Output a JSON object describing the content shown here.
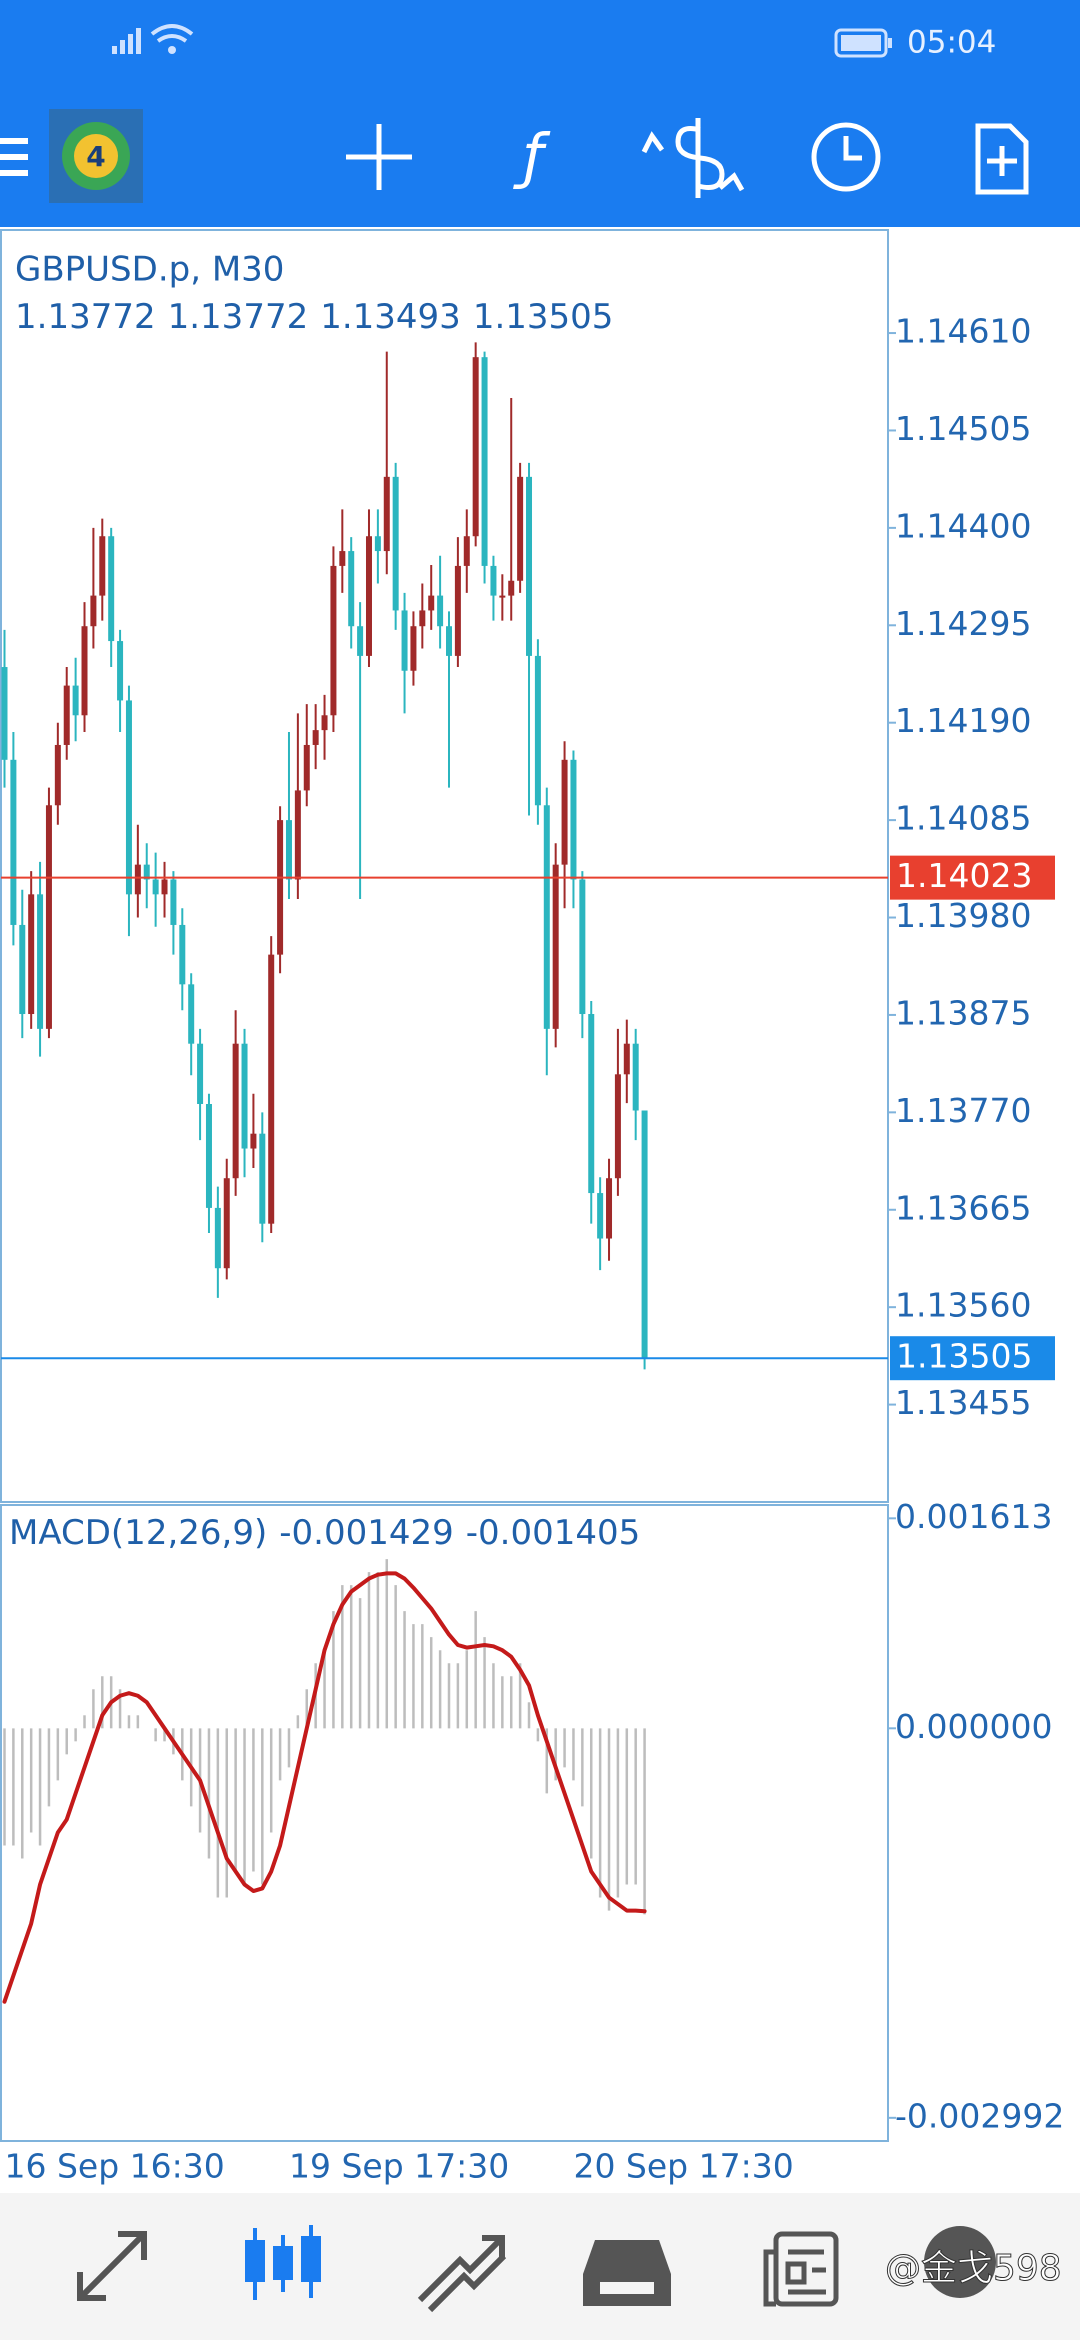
{
  "status_bar": {
    "time": "05:04"
  },
  "watermark": "@金戈598",
  "chart_data": [
    {
      "type": "candlestick",
      "title": "GBPUSD.p, M30",
      "categories": [
        "16 Sep 16:30",
        null,
        null,
        null,
        null,
        null,
        null,
        null,
        null,
        null,
        null,
        null,
        null,
        null,
        null,
        null,
        null,
        null,
        null,
        null,
        null,
        null,
        null,
        null,
        null,
        null,
        null,
        null,
        null,
        null,
        null,
        null,
        "19 Sep 17:30",
        null,
        null,
        null,
        null,
        null,
        null,
        null,
        null,
        null,
        null,
        null,
        null,
        null,
        null,
        null,
        null,
        null,
        null,
        null,
        null,
        null,
        null,
        null,
        null,
        null,
        null,
        null,
        null,
        null,
        null,
        null,
        "20 Sep 17:30",
        null,
        null,
        null,
        null,
        null,
        null,
        null,
        null
      ],
      "open": [
        1.1425,
        1.1415,
        1.13972,
        1.13876,
        1.14005,
        1.1386,
        1.14101,
        1.14166,
        1.1423,
        1.14198,
        1.14294,
        1.14327,
        1.14391,
        1.14278,
        1.14214,
        1.14005,
        1.14037,
        1.14021,
        1.14005,
        1.14021,
        1.13972,
        1.13908,
        1.13844,
        1.13779,
        1.13667,
        1.13602,
        1.13699,
        1.13844,
        1.13731,
        1.13747,
        1.1365,
        1.1394,
        1.14085,
        1.14021,
        1.14117,
        1.14166,
        1.14182,
        1.14198,
        1.14359,
        1.14375,
        1.14294,
        1.14262,
        1.14391,
        1.14375,
        1.14455,
        1.14311,
        1.14246,
        1.14294,
        1.14311,
        1.14327,
        1.14294,
        1.14262,
        1.14359,
        1.14391,
        1.14584,
        1.14359,
        1.14327,
        1.14327,
        1.14343,
        1.14455,
        1.14262,
        1.14101,
        1.1386,
        1.14037,
        1.1415,
        1.14021,
        1.13876,
        1.13683,
        1.13634,
        1.13699,
        1.13811,
        1.13844,
        1.13772
      ],
      "high": [
        1.1429,
        1.1418,
        1.1401,
        1.1403,
        1.1404,
        1.1412,
        1.1419,
        1.1425,
        1.1426,
        1.1432,
        1.144,
        1.1441,
        1.144,
        1.1429,
        1.1423,
        1.1408,
        1.1406,
        1.1405,
        1.1404,
        1.1403,
        1.1399,
        1.1392,
        1.1386,
        1.1379,
        1.1369,
        1.1372,
        1.1388,
        1.1386,
        1.1379,
        1.1377,
        1.1396,
        1.141,
        1.1418,
        1.142,
        1.1421,
        1.1421,
        1.1422,
        1.1438,
        1.1442,
        1.1439,
        1.1432,
        1.1442,
        1.1442,
        1.1459,
        1.1447,
        1.1433,
        1.1431,
        1.1434,
        1.1436,
        1.1437,
        1.1431,
        1.1439,
        1.1442,
        1.146,
        1.1459,
        1.1437,
        1.1435,
        1.1454,
        1.1447,
        1.1447,
        1.1428,
        1.1412,
        1.1406,
        1.1417,
        1.1416,
        1.1403,
        1.1389,
        1.137,
        1.1372,
        1.1386,
        1.1387,
        1.1386,
        1.13772
      ],
      "low": [
        1.1412,
        1.1395,
        1.1385,
        1.1386,
        1.1383,
        1.1385,
        1.1408,
        1.1415,
        1.1417,
        1.1418,
        1.1427,
        1.143,
        1.1425,
        1.1418,
        1.1396,
        1.1398,
        1.1399,
        1.1397,
        1.1398,
        1.1394,
        1.1388,
        1.1381,
        1.1374,
        1.1364,
        1.1357,
        1.1359,
        1.1368,
        1.137,
        1.1371,
        1.1363,
        1.1364,
        1.1392,
        1.14,
        1.14,
        1.141,
        1.1414,
        1.1415,
        1.1418,
        1.1433,
        1.1427,
        1.14,
        1.1425,
        1.1434,
        1.1435,
        1.1429,
        1.142,
        1.1423,
        1.1427,
        1.1429,
        1.1427,
        1.1412,
        1.1425,
        1.1433,
        1.1438,
        1.1434,
        1.143,
        1.143,
        1.143,
        1.1433,
        1.1409,
        1.1408,
        1.1381,
        1.1384,
        1.1399,
        1.1399,
        1.1385,
        1.1365,
        1.136,
        1.1361,
        1.1368,
        1.1378,
        1.1374,
        1.13493
      ],
      "close": [
        1.1415,
        1.13972,
        1.13876,
        1.14005,
        1.1386,
        1.14101,
        1.14166,
        1.1423,
        1.14198,
        1.14294,
        1.14327,
        1.14391,
        1.14278,
        1.14214,
        1.14005,
        1.14037,
        1.14021,
        1.14005,
        1.14021,
        1.13972,
        1.13908,
        1.13844,
        1.13779,
        1.13667,
        1.13602,
        1.13699,
        1.13844,
        1.13731,
        1.13747,
        1.1365,
        1.1394,
        1.14085,
        1.14021,
        1.14117,
        1.14166,
        1.14182,
        1.14198,
        1.14359,
        1.14375,
        1.14294,
        1.14262,
        1.14391,
        1.14375,
        1.14455,
        1.14311,
        1.14246,
        1.14294,
        1.14311,
        1.14327,
        1.14294,
        1.14262,
        1.14359,
        1.14391,
        1.14584,
        1.14359,
        1.14327,
        1.14327,
        1.14343,
        1.14455,
        1.14262,
        1.14101,
        1.1386,
        1.14037,
        1.1415,
        1.14021,
        1.13876,
        1.13683,
        1.13634,
        1.13699,
        1.13811,
        1.13844,
        1.13772,
        1.13505
      ],
      "up_color": "#a02a2a",
      "down_color": "#2bb5bf",
      "ylim": [
        1.1335,
        1.1472
      ],
      "yticks": [
        {
          "value": 1.1461,
          "label": "1.14610"
        },
        1.14505,
        {
          "value": 1.144,
          "label": "1.14400"
        },
        1.14295,
        {
          "value": 1.1419,
          "label": "1.14190"
        },
        1.14085,
        {
          "value": 1.1398,
          "label": "1.13980"
        },
        1.13875,
        {
          "value": 1.1377,
          "label": "1.13770"
        },
        1.13665,
        {
          "value": 1.1356,
          "label": "1.13560"
        },
        1.13455
      ],
      "lines": [
        {
          "value": 1.14023,
          "color": "#e8402f"
        }
      ],
      "bid_color": "#1a8ae8"
    },
    {
      "type": "macd",
      "title": "MACD(12,26,9)",
      "series": [
        {
          "style": "histogram",
          "color": "#bdbdbd",
          "values": [
            -0.0009,
            -0.0009,
            -0.001,
            -0.0008,
            -0.0009,
            -0.0006,
            -0.0004,
            -0.0002,
            -0.0001,
            0.0001,
            0.0003,
            0.0004,
            0.0004,
            0.0003,
            0.0001,
            0.0001,
            0,
            -0.0001,
            -0.0001,
            -0.0002,
            -0.0004,
            -0.0006,
            -0.0008,
            -0.001,
            -0.0013,
            -0.0013,
            -0.0011,
            -0.0012,
            -0.0011,
            -0.0012,
            -0.0008,
            -0.0004,
            -0.0003,
            0.0001,
            0.0003,
            0.0005,
            0.0006,
            0.0009,
            0.0011,
            0.0011,
            0.001,
            0.0012,
            0.0012,
            0.0013,
            0.0011,
            0.0009,
            0.0008,
            0.0008,
            0.0007,
            0.0006,
            0.0005,
            0.0005,
            0.0006,
            0.0009,
            0.0007,
            0.0005,
            0.0004,
            0.0004,
            0.0005,
            0.0002,
            -0.0001,
            -0.0005,
            -0.0004,
            -0.0003,
            -0.0004,
            -0.0006,
            -0.001,
            -0.0013,
            -0.0014,
            -0.0013,
            -0.0012,
            -0.0012,
            -0.001429
          ]
        },
        {
          "style": "line",
          "color": "#c41a1a",
          "values": [
            -0.0021,
            -0.0019,
            -0.0017,
            -0.0015,
            -0.0012,
            -0.001,
            -0.0008,
            -0.0007,
            -0.0005,
            -0.0003,
            -0.0001,
            0.0001,
            0.0002,
            0.00025,
            0.00027,
            0.00025,
            0.0002,
            0.0001,
            0,
            -0.0001,
            -0.0002,
            -0.0003,
            -0.0004,
            -0.0006,
            -0.0008,
            -0.001,
            -0.0011,
            -0.0012,
            -0.00125,
            -0.00123,
            -0.0011,
            -0.0009,
            -0.0006,
            -0.0003,
            0,
            0.0003,
            0.0006,
            0.0008,
            0.00095,
            0.00105,
            0.0011,
            0.00115,
            0.00118,
            0.00119,
            0.00119,
            0.00115,
            0.00108,
            0.001,
            0.00092,
            0.00082,
            0.00072,
            0.00064,
            0.00062,
            0.00063,
            0.00064,
            0.00063,
            0.0006,
            0.00055,
            0.00045,
            0.00033,
            0.0001,
            -0.0001,
            -0.0003,
            -0.0005,
            -0.0007,
            -0.0009,
            -0.0011,
            -0.0012,
            -0.0013,
            -0.00135,
            -0.0014,
            -0.0014,
            -0.001405
          ]
        }
      ],
      "ylim": [
        -0.00317,
        0.0017
      ],
      "yticks": [
        0.001613,
        {
          "value": 0,
          "label": "0.000000"
        },
        -0.002992
      ]
    }
  ]
}
